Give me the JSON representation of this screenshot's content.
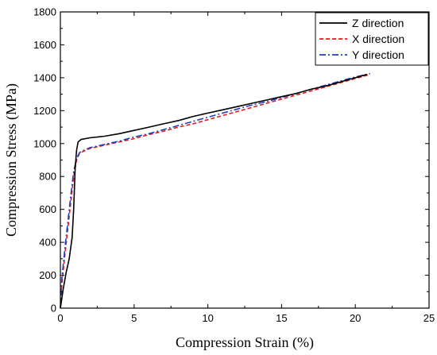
{
  "chart_data": {
    "type": "line",
    "xlabel": "Compression Strain (%)",
    "ylabel": "Compression Stress (MPa)",
    "xlim": [
      0,
      25
    ],
    "ylim": [
      0,
      1800
    ],
    "xticks": [
      0,
      5,
      10,
      15,
      20,
      25
    ],
    "yticks": [
      0,
      200,
      400,
      600,
      800,
      1000,
      1200,
      1400,
      1600,
      1800
    ],
    "grid": false,
    "legend_position": "top-right",
    "series": [
      {
        "name": "Z direction",
        "color": "#000000",
        "dash": "solid",
        "x": [
          0,
          0.2,
          0.4,
          0.6,
          0.8,
          0.9,
          1.0,
          1.1,
          1.2,
          1.4,
          1.7,
          2.0,
          3,
          4,
          5,
          6,
          7,
          8,
          9,
          10,
          11,
          12,
          13,
          14,
          15,
          16,
          17,
          18,
          19,
          20,
          20.8
        ],
        "y": [
          0,
          120,
          220,
          300,
          430,
          600,
          850,
          960,
          1010,
          1025,
          1030,
          1035,
          1045,
          1060,
          1080,
          1100,
          1120,
          1140,
          1165,
          1185,
          1205,
          1225,
          1245,
          1265,
          1285,
          1305,
          1330,
          1350,
          1375,
          1400,
          1420
        ]
      },
      {
        "name": "X direction",
        "color": "#e41a1c",
        "dash": "dashed",
        "x": [
          0,
          0.1,
          0.3,
          0.5,
          0.7,
          0.9,
          1.1,
          1.3,
          1.6,
          2.0,
          3,
          4,
          5,
          6,
          7,
          8,
          9,
          10,
          11,
          12,
          13,
          14,
          15,
          16,
          17,
          18,
          19,
          20,
          21
        ],
        "y": [
          0,
          150,
          320,
          480,
          640,
          800,
          900,
          940,
          955,
          970,
          990,
          1010,
          1030,
          1055,
          1075,
          1100,
          1120,
          1145,
          1170,
          1195,
          1220,
          1245,
          1270,
          1295,
          1320,
          1345,
          1370,
          1395,
          1420
        ]
      },
      {
        "name": "Y direction",
        "color": "#1f3fbf",
        "dash": "dashdot",
        "x": [
          0,
          0.1,
          0.3,
          0.5,
          0.7,
          0.9,
          1.1,
          1.3,
          1.6,
          2.0,
          3,
          4,
          5,
          6,
          7,
          8,
          9,
          10,
          11,
          12,
          13,
          14,
          15,
          16,
          17,
          18,
          19,
          20,
          21
        ],
        "y": [
          0,
          180,
          360,
          520,
          680,
          830,
          910,
          945,
          960,
          975,
          995,
          1015,
          1040,
          1060,
          1085,
          1110,
          1135,
          1160,
          1185,
          1210,
          1235,
          1255,
          1280,
          1305,
          1330,
          1355,
          1380,
          1405,
          1425
        ]
      }
    ]
  }
}
